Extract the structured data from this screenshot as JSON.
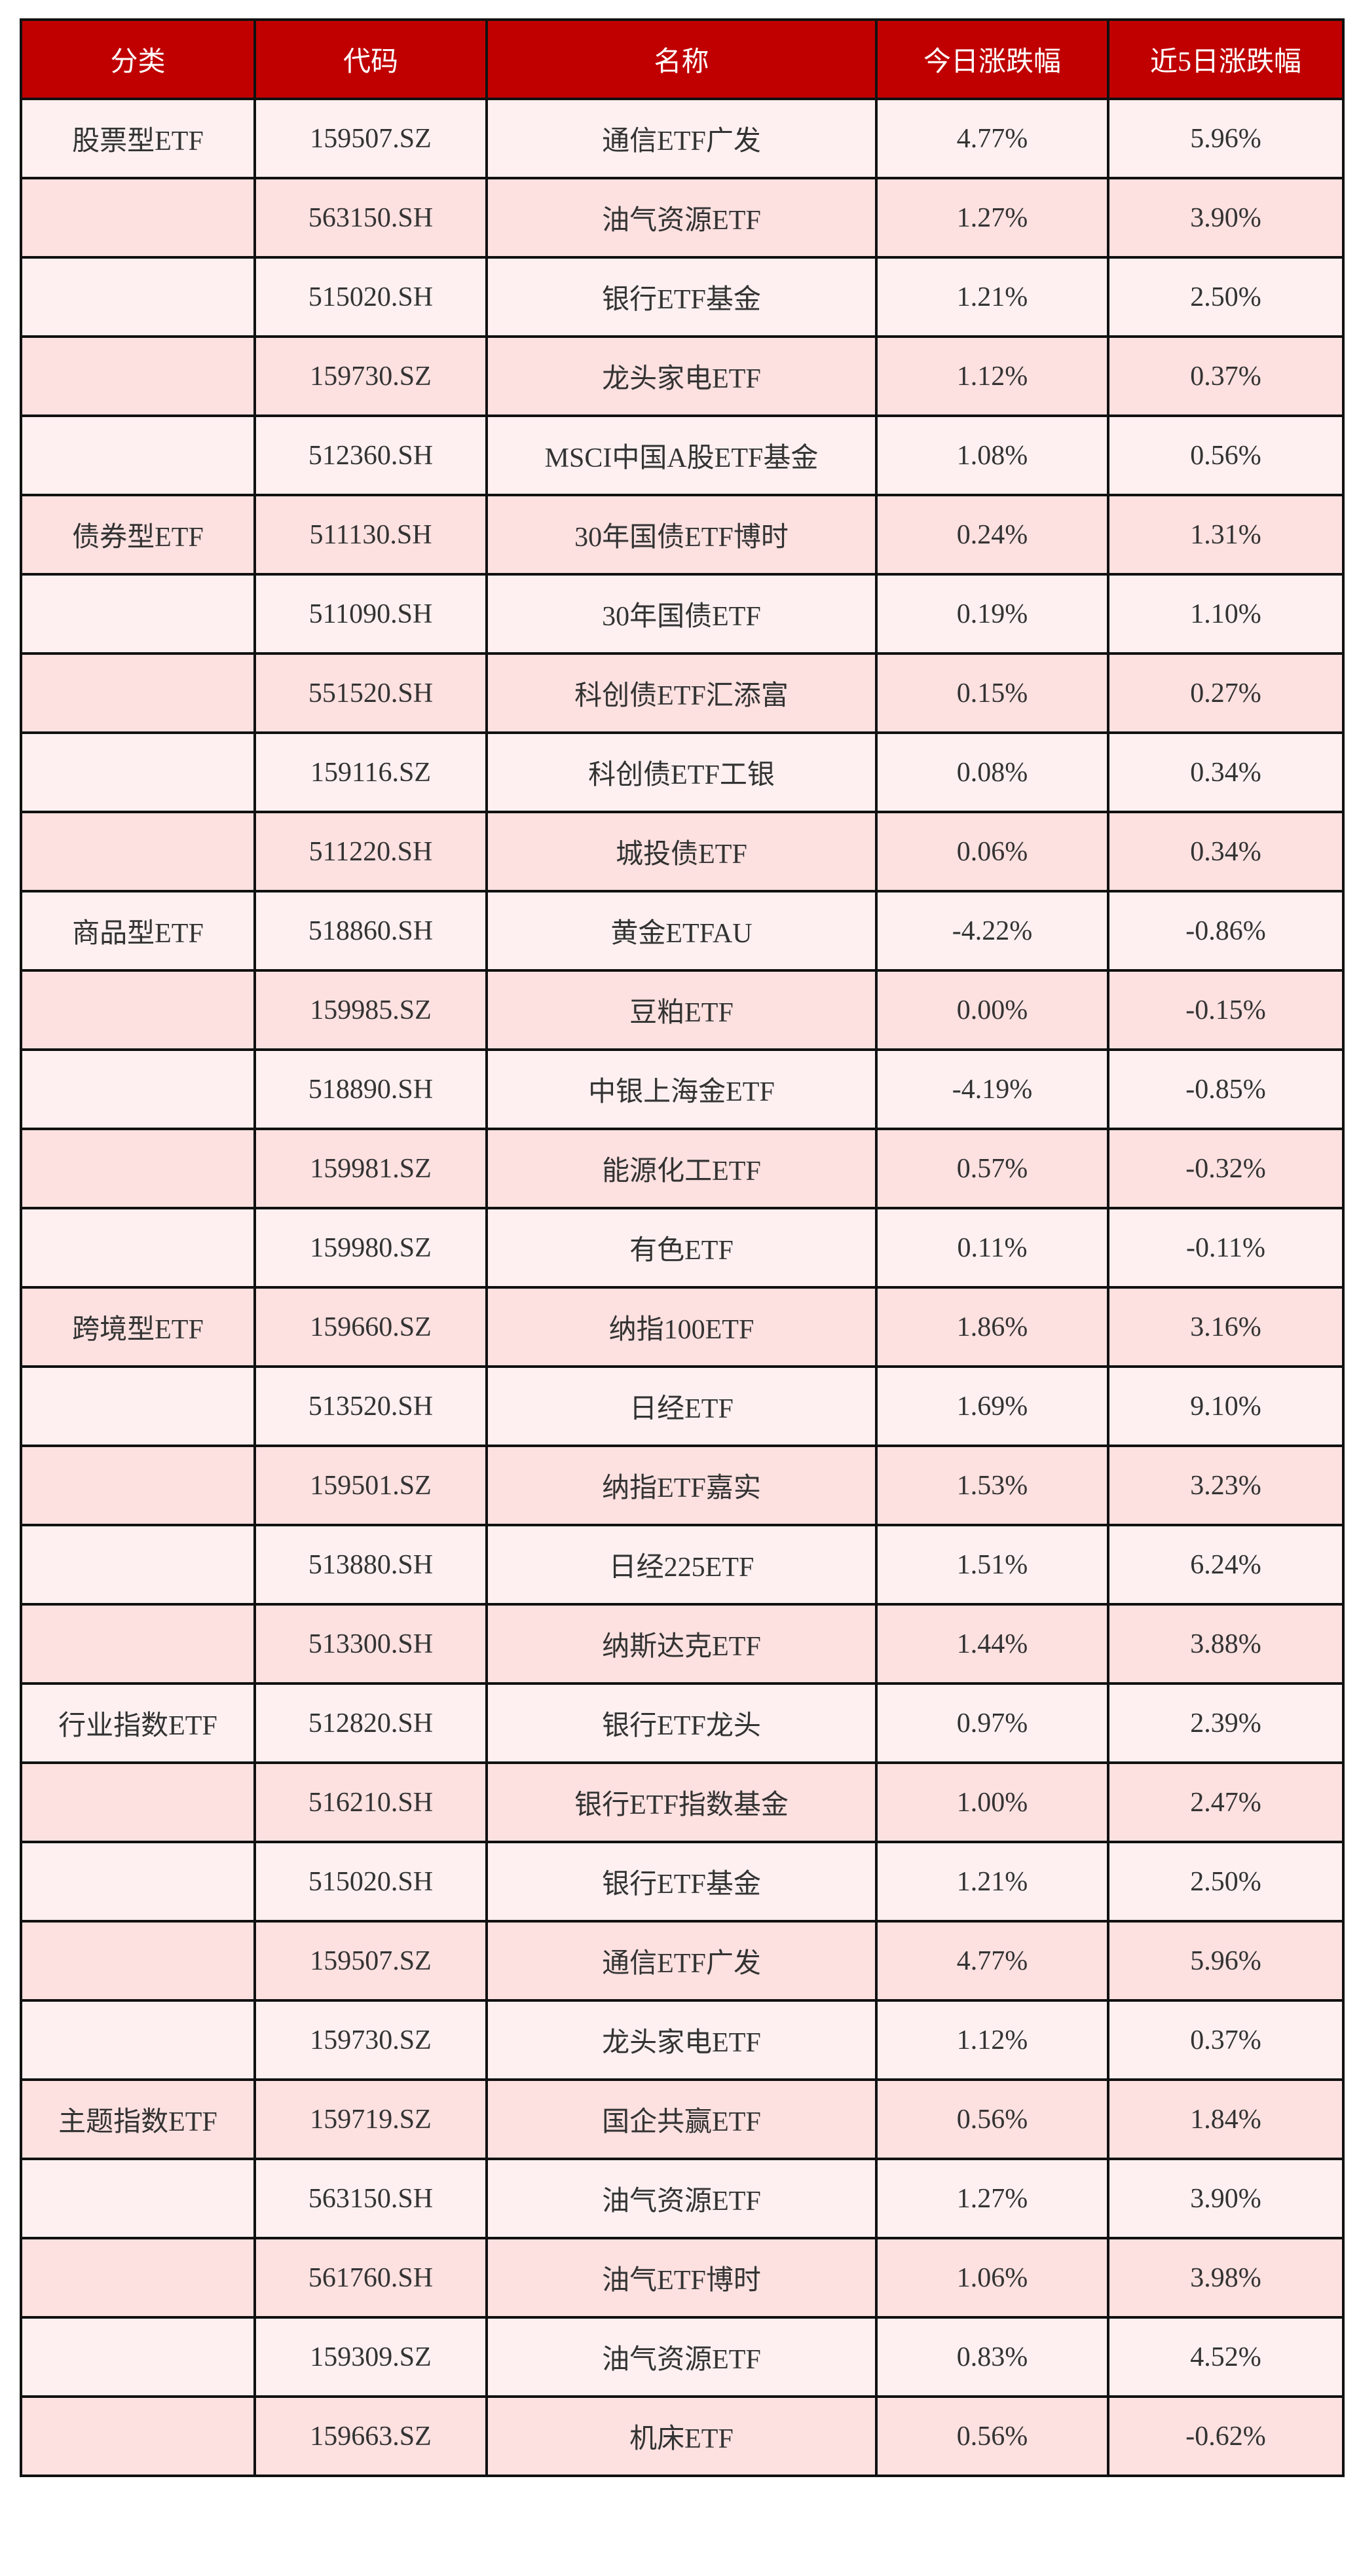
{
  "colors": {
    "header_bg": "#c00000",
    "row_light": "#fef0f0",
    "row_dark": "#fde0e0"
  },
  "headers": [
    "分类",
    "代码",
    "名称",
    "今日涨跌幅",
    "近5日涨跌幅"
  ],
  "rows": [
    [
      "股票型ETF",
      "159507.SZ",
      "通信ETF广发",
      "4.77%",
      "5.96%"
    ],
    [
      "",
      "563150.SH",
      "油气资源ETF",
      "1.27%",
      "3.90%"
    ],
    [
      "",
      "515020.SH",
      "银行ETF基金",
      "1.21%",
      "2.50%"
    ],
    [
      "",
      "159730.SZ",
      "龙头家电ETF",
      "1.12%",
      "0.37%"
    ],
    [
      "",
      "512360.SH",
      "MSCI中国A股ETF基金",
      "1.08%",
      "0.56%"
    ],
    [
      "债券型ETF",
      "511130.SH",
      "30年国债ETF博时",
      "0.24%",
      "1.31%"
    ],
    [
      "",
      "511090.SH",
      "30年国债ETF",
      "0.19%",
      "1.10%"
    ],
    [
      "",
      "551520.SH",
      "科创债ETF汇添富",
      "0.15%",
      "0.27%"
    ],
    [
      "",
      "159116.SZ",
      "科创债ETF工银",
      "0.08%",
      "0.34%"
    ],
    [
      "",
      "511220.SH",
      "城投债ETF",
      "0.06%",
      "0.34%"
    ],
    [
      "商品型ETF",
      "518860.SH",
      "黄金ETFAU",
      "-4.22%",
      "-0.86%"
    ],
    [
      "",
      "159985.SZ",
      "豆粕ETF",
      "0.00%",
      "-0.15%"
    ],
    [
      "",
      "518890.SH",
      "中银上海金ETF",
      "-4.19%",
      "-0.85%"
    ],
    [
      "",
      "159981.SZ",
      "能源化工ETF",
      "0.57%",
      "-0.32%"
    ],
    [
      "",
      "159980.SZ",
      "有色ETF",
      "0.11%",
      "-0.11%"
    ],
    [
      "跨境型ETF",
      "159660.SZ",
      "纳指100ETF",
      "1.86%",
      "3.16%"
    ],
    [
      "",
      "513520.SH",
      "日经ETF",
      "1.69%",
      "9.10%"
    ],
    [
      "",
      "159501.SZ",
      "纳指ETF嘉实",
      "1.53%",
      "3.23%"
    ],
    [
      "",
      "513880.SH",
      "日经225ETF",
      "1.51%",
      "6.24%"
    ],
    [
      "",
      "513300.SH",
      "纳斯达克ETF",
      "1.44%",
      "3.88%"
    ],
    [
      "行业指数ETF",
      "512820.SH",
      "银行ETF龙头",
      "0.97%",
      "2.39%"
    ],
    [
      "",
      "516210.SH",
      "银行ETF指数基金",
      "1.00%",
      "2.47%"
    ],
    [
      "",
      "515020.SH",
      "银行ETF基金",
      "1.21%",
      "2.50%"
    ],
    [
      "",
      "159507.SZ",
      "通信ETF广发",
      "4.77%",
      "5.96%"
    ],
    [
      "",
      "159730.SZ",
      "龙头家电ETF",
      "1.12%",
      "0.37%"
    ],
    [
      "主题指数ETF",
      "159719.SZ",
      "国企共赢ETF",
      "0.56%",
      "1.84%"
    ],
    [
      "",
      "563150.SH",
      "油气资源ETF",
      "1.27%",
      "3.90%"
    ],
    [
      "",
      "561760.SH",
      "油气ETF博时",
      "1.06%",
      "3.98%"
    ],
    [
      "",
      "159309.SZ",
      "油气资源ETF",
      "0.83%",
      "4.52%"
    ],
    [
      "",
      "159663.SZ",
      "机床ETF",
      "0.56%",
      "-0.62%"
    ]
  ]
}
